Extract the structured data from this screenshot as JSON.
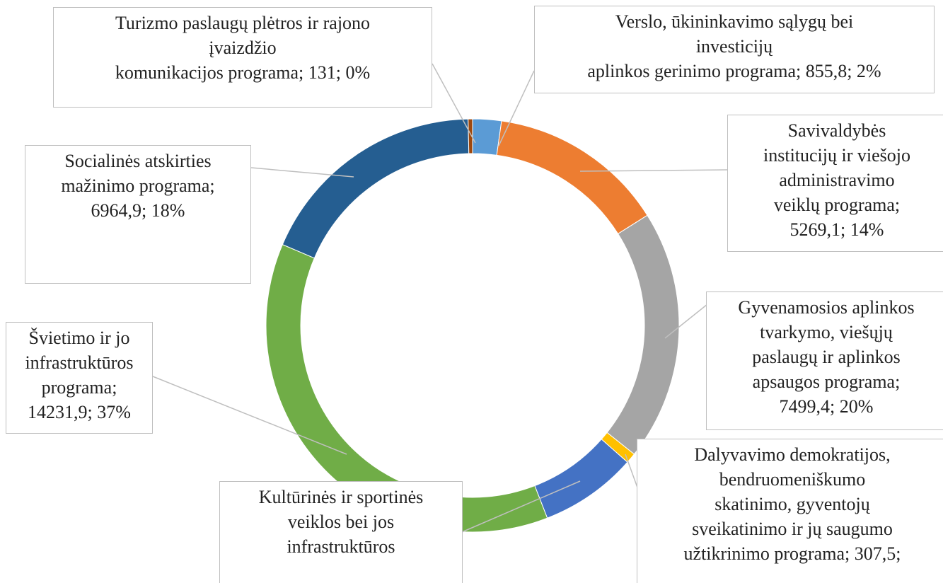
{
  "chart_data": {
    "type": "donut",
    "labels": [
      "Verslo, ūkininkavimo sąlygų bei\ninvesticijų\naplinkos gerinimo programa; 855,8; 2%",
      "Savivaldybės\ninstitucijų ir viešojo\nadministravimo\nveiklų programa;\n5269,1; 14%",
      "Gyvenamosios aplinkos\ntvarkymo, viešųjų\npaslaugų ir aplinkos\napsaugos programa;\n7499,4; 20%",
      "Dalyvavimo demokratijos,\nbendruomeniškumo\nskatinimo, gyventojų\nsveikatinimo ir jų saugumo\nužtikrinimo programa; 307,5;",
      "Kultūrinės ir sportinės\nveiklos bei jos\ninfrastruktūros",
      "Švietimo ir jo\ninfrastruktūros\nprograma;\n14231,9; 37%",
      "Socialinės atskirties\nmažinimo programa;\n6964,9; 18%",
      "Turizmo paslaugų plėtros ir rajono\nįvaizdžio\nkomunikacijos programa; 131; 0%"
    ],
    "values": [
      855.8,
      5269.1,
      7499.4,
      307.5,
      2900,
      14231.9,
      6964.9,
      131
    ],
    "colors": [
      "#5b9bd5",
      "#ed7d31",
      "#a5a5a5",
      "#ffc000",
      "#4472c4",
      "#70ad47",
      "#255e91",
      "#9e480e"
    ]
  }
}
